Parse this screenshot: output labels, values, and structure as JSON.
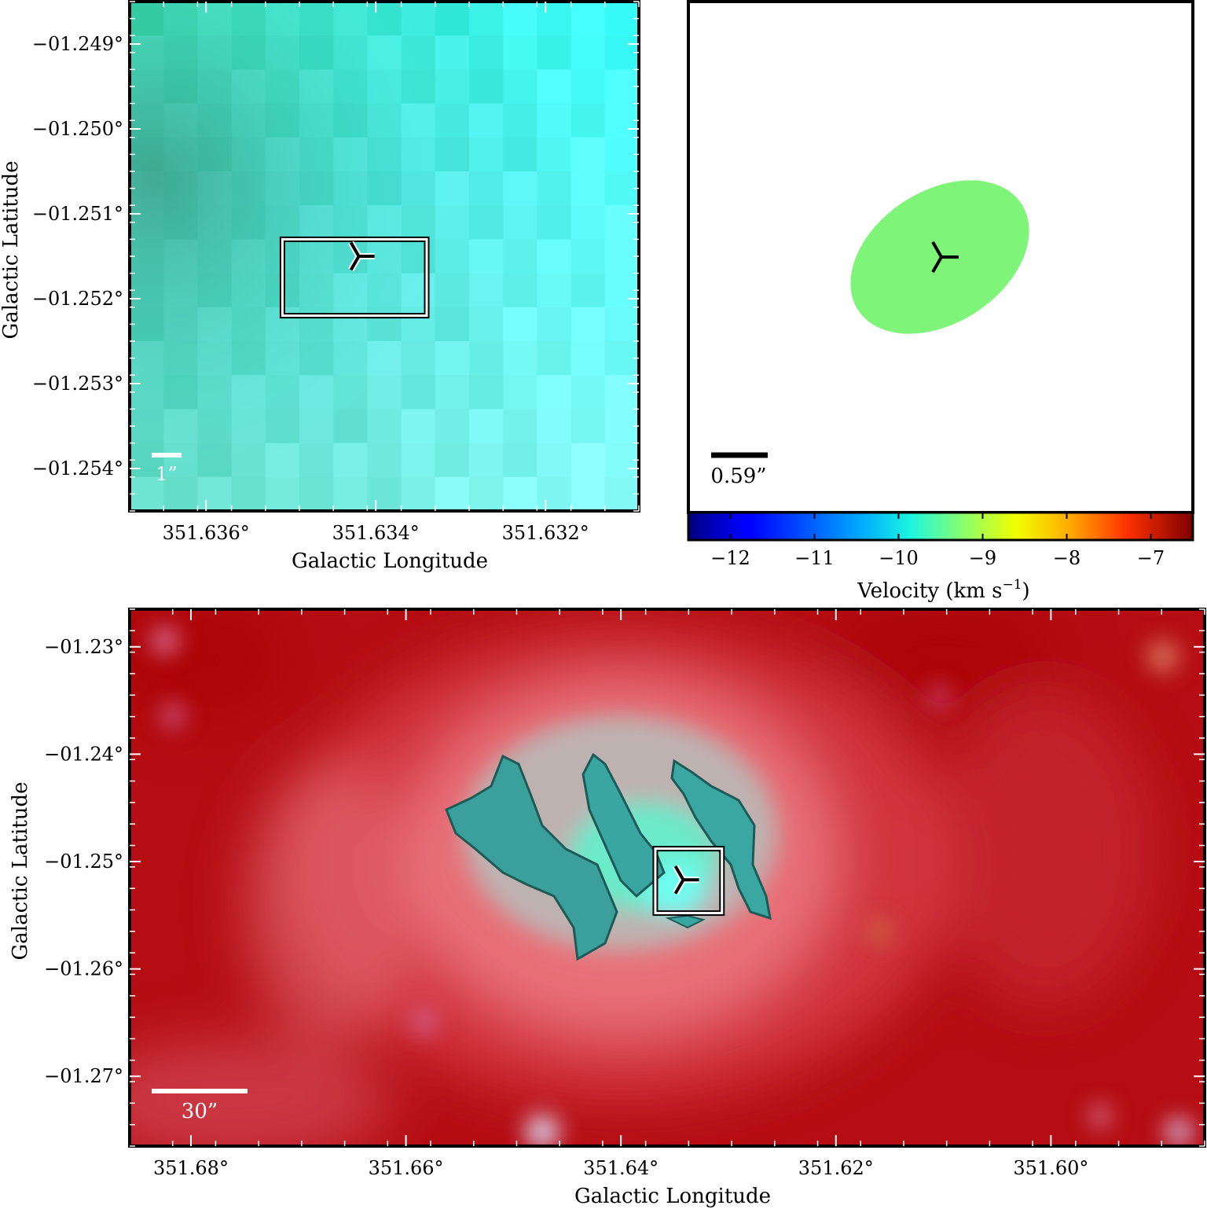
{
  "chart_data": [
    {
      "panel": "top-left",
      "type": "heatmap",
      "xlabel": "Galactic Longitude",
      "ylabel": "Galactic Latitude",
      "x_ticks": [
        {
          "value": 351.636,
          "label": "351.636°"
        },
        {
          "value": 351.634,
          "label": "351.634°"
        },
        {
          "value": 351.632,
          "label": "351.632°"
        }
      ],
      "y_ticks": [
        {
          "value": -1.249,
          "label": "−01.249°"
        },
        {
          "value": -1.25,
          "label": "−01.250°"
        },
        {
          "value": -1.251,
          "label": "−01.251°"
        },
        {
          "value": -1.252,
          "label": "−01.252°"
        },
        {
          "value": -1.253,
          "label": "−01.253°"
        },
        {
          "value": -1.254,
          "label": "−01.254°"
        }
      ],
      "xlim": [
        351.6369,
        351.6309
      ],
      "ylim": [
        -1.2545,
        -1.2485
      ],
      "scale_bar": "1”",
      "marker": {
        "lon": 351.6342,
        "lat": -1.2515
      },
      "box": {
        "lon": [
          351.6351,
          351.6334
        ],
        "lat": [
          -1.2513,
          -1.2522
        ]
      },
      "image": "green-cyan composite, darker toward upper left"
    },
    {
      "panel": "top-right",
      "type": "ellipse",
      "scale_bar": "0.59”",
      "ellipse_color": "#7ef579",
      "colorbar": {
        "label": "Velocity (km s",
        "label_sup": "−1",
        "label_end": ")",
        "range": [
          -12.5,
          -6.5
        ],
        "ticks": [
          {
            "value": -12,
            "label": "−12"
          },
          {
            "value": -11,
            "label": "−11"
          },
          {
            "value": -10,
            "label": "−10"
          },
          {
            "value": -9,
            "label": "−9"
          },
          {
            "value": -8,
            "label": "−8"
          },
          {
            "value": -7,
            "label": "−7"
          }
        ],
        "colormap": "jet"
      }
    },
    {
      "panel": "bottom",
      "type": "heatmap",
      "xlabel": "Galactic Longitude",
      "ylabel": "Galactic Latitude",
      "x_ticks": [
        {
          "value": 351.68,
          "label": "351.68°"
        },
        {
          "value": 351.66,
          "label": "351.66°"
        },
        {
          "value": 351.64,
          "label": "351.64°"
        },
        {
          "value": 351.62,
          "label": "351.62°"
        },
        {
          "value": 351.6,
          "label": "351.60°"
        }
      ],
      "y_ticks": [
        {
          "value": -1.23,
          "label": "−01.23°"
        },
        {
          "value": -1.24,
          "label": "−01.24°"
        },
        {
          "value": -1.25,
          "label": "−01.25°"
        },
        {
          "value": -1.26,
          "label": "−01.26°"
        },
        {
          "value": -1.27,
          "label": "−01.27°"
        }
      ],
      "xlim": [
        351.6857,
        351.5857
      ],
      "ylim": [
        -1.2765,
        -1.2265
      ],
      "scale_bar": "30”",
      "marker": {
        "lon": 351.6342,
        "lat": -1.2517
      },
      "box": {
        "lon": [
          351.6368,
          351.6306
        ],
        "lat": [
          -1.2488,
          -1.2548
        ]
      },
      "image": "red composite background with teal/cyan central nebula"
    }
  ]
}
